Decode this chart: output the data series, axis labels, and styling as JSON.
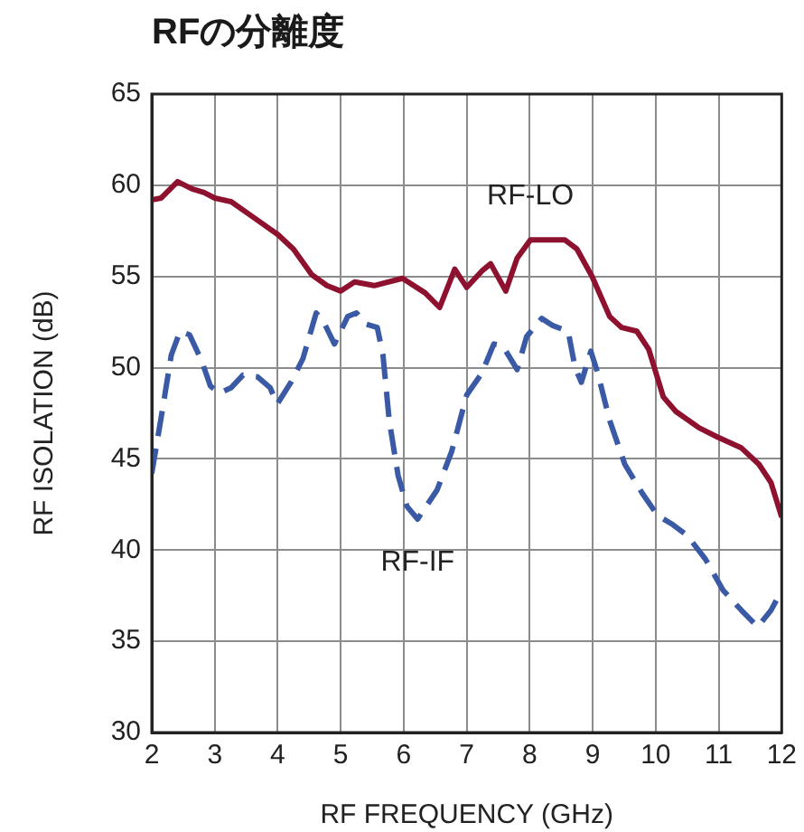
{
  "chart_data": {
    "type": "line",
    "title": "RFの分離度",
    "xlabel": "RF FREQUENCY (GHz)",
    "ylabel": "RF ISOLATION (dB)",
    "xlim": [
      2,
      12
    ],
    "xticks": [
      2,
      3,
      4,
      5,
      6,
      7,
      8,
      9,
      10,
      11,
      12
    ],
    "ylim": [
      30,
      65
    ],
    "yticks": [
      30,
      35,
      40,
      45,
      50,
      55,
      60,
      65
    ],
    "grid": true,
    "legend": false,
    "marker": "none",
    "series": [
      {
        "name": "RF-LO",
        "color": "#8e1230",
        "line_style": "solid",
        "x": [
          2.0,
          2.15,
          2.41,
          2.64,
          2.83,
          3.0,
          3.26,
          3.59,
          4.0,
          4.25,
          4.54,
          4.78,
          5.0,
          5.22,
          5.53,
          5.98,
          6.34,
          6.57,
          6.81,
          7.0,
          7.24,
          7.38,
          7.62,
          7.8,
          8.01,
          8.56,
          8.75,
          8.99,
          9.27,
          9.46,
          9.7,
          9.89,
          10.12,
          10.32,
          10.69,
          10.98,
          11.36,
          11.64,
          11.83,
          12.0
        ],
        "values": [
          59.2,
          59.3,
          60.2,
          59.8,
          59.6,
          59.3,
          59.1,
          58.3,
          57.3,
          56.5,
          55.1,
          54.5,
          54.2,
          54.7,
          54.5,
          54.9,
          54.1,
          53.3,
          55.4,
          54.4,
          55.3,
          55.7,
          54.2,
          56.0,
          57.0,
          57.0,
          56.5,
          55.0,
          52.8,
          52.2,
          52.0,
          51.0,
          48.4,
          47.6,
          46.7,
          46.2,
          45.6,
          44.7,
          43.7,
          41.8
        ]
      },
      {
        "name": "RF-IF",
        "color": "#3b5aa6",
        "line_style": "dashed",
        "x": [
          2.0,
          2.17,
          2.31,
          2.45,
          2.6,
          2.79,
          2.93,
          3.07,
          3.26,
          3.45,
          3.68,
          3.88,
          3.99,
          4.21,
          4.4,
          4.61,
          4.73,
          4.9,
          5.11,
          5.25,
          5.39,
          5.58,
          5.67,
          5.77,
          5.91,
          6.05,
          6.22,
          6.53,
          6.76,
          7.0,
          7.24,
          7.43,
          7.57,
          7.8,
          7.95,
          8.19,
          8.37,
          8.61,
          8.72,
          8.82,
          8.97,
          9.08,
          9.27,
          9.51,
          9.79,
          10.03,
          10.27,
          10.5,
          10.79,
          11.07,
          11.36,
          11.62,
          11.83,
          12.0
        ],
        "values": [
          44.2,
          47.7,
          50.7,
          52.0,
          51.8,
          50.4,
          49.0,
          48.6,
          48.9,
          49.6,
          49.5,
          48.9,
          48.0,
          49.2,
          50.5,
          53.0,
          52.5,
          51.3,
          52.8,
          53.0,
          52.4,
          52.2,
          50.7,
          47.1,
          44.1,
          42.4,
          41.7,
          43.3,
          45.4,
          48.5,
          49.7,
          51.3,
          51.2,
          49.9,
          51.7,
          52.7,
          52.3,
          52.0,
          50.0,
          49.2,
          50.9,
          49.7,
          47.1,
          44.7,
          43.1,
          41.9,
          41.4,
          40.8,
          39.5,
          37.8,
          36.7,
          35.8,
          36.7,
          37.8
        ]
      }
    ]
  }
}
